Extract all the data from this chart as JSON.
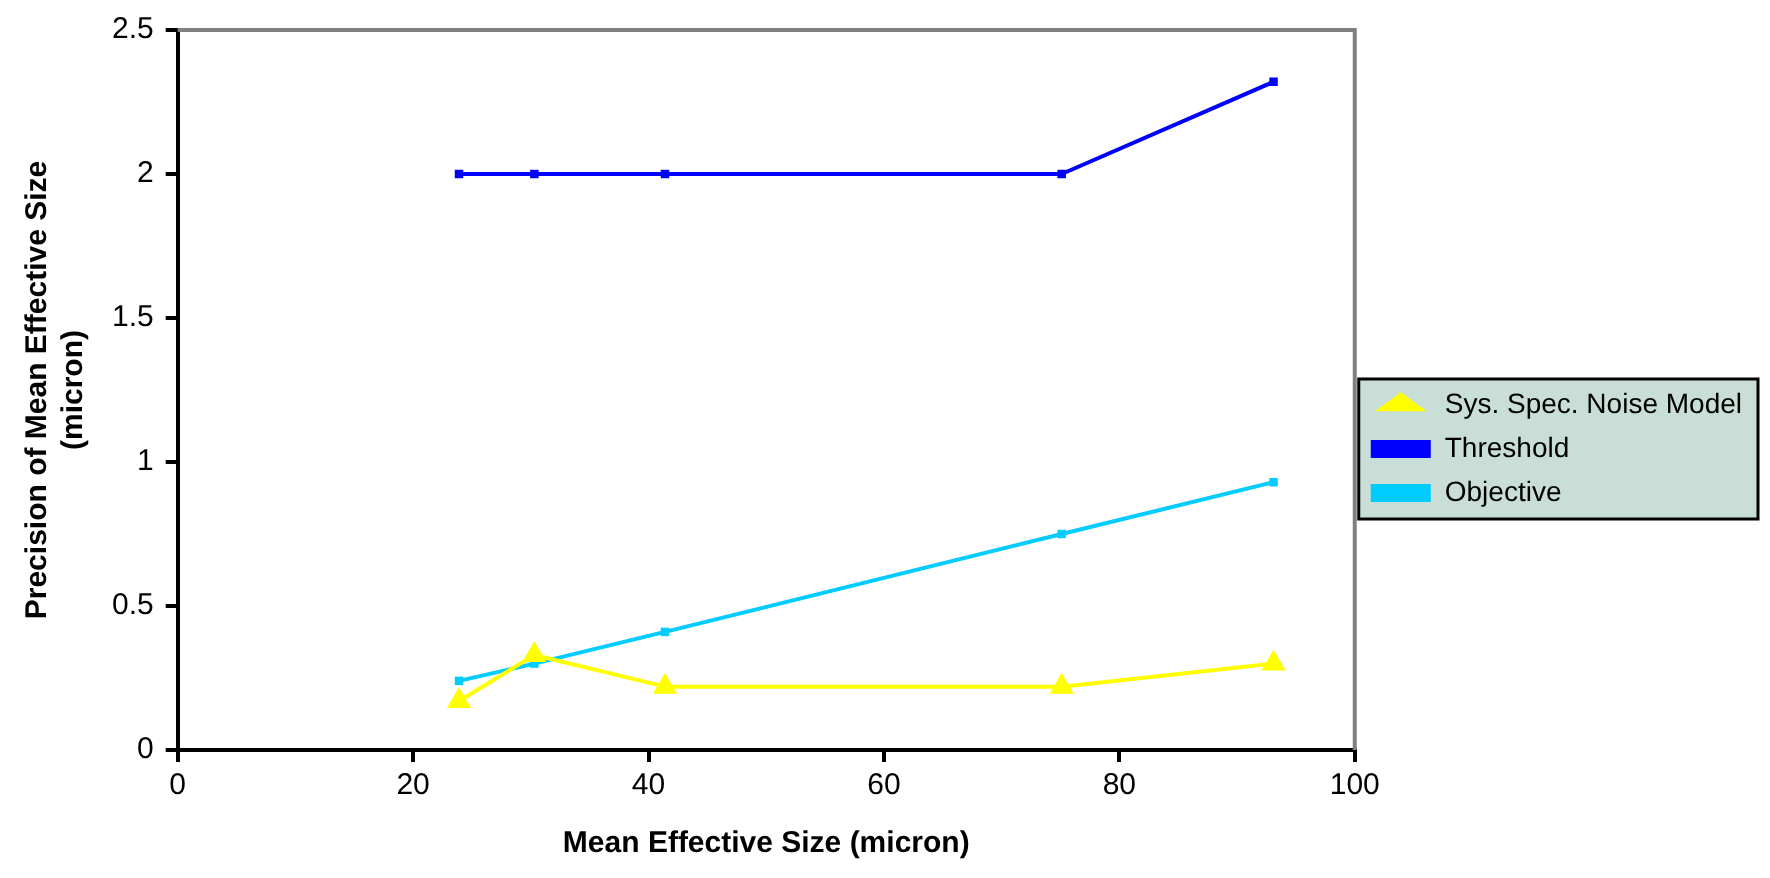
{
  "chart_data": {
    "type": "line",
    "xlabel": "Mean Effective Size (micron)",
    "ylabel": "Precision of Mean Effective Size (micron)",
    "xlim": [
      0,
      100
    ],
    "xticks": [
      0,
      20,
      40,
      60,
      80,
      100
    ],
    "ylim": [
      0,
      2.5
    ],
    "yticks": [
      0,
      0.5,
      1,
      1.5,
      2,
      2.5
    ],
    "x": [
      23.9,
      30.3,
      41.4,
      75.1,
      93.1
    ],
    "series": [
      {
        "name": "Sys. Spec. Noise Model",
        "color": "#ffff00",
        "marker": "triangle",
        "values": [
          0.17,
          0.33,
          0.22,
          0.22,
          0.3
        ]
      },
      {
        "name": "Threshold",
        "color": "#0000ff",
        "marker": "square",
        "values": [
          2,
          2,
          2,
          2,
          2.32
        ]
      },
      {
        "name": "Objective",
        "color": "#00ccff",
        "marker": "square",
        "values": [
          0.24,
          0.3,
          0.41,
          0.75,
          0.93
        ]
      }
    ],
    "grid": false,
    "legend": "right",
    "line_style": "solid"
  }
}
